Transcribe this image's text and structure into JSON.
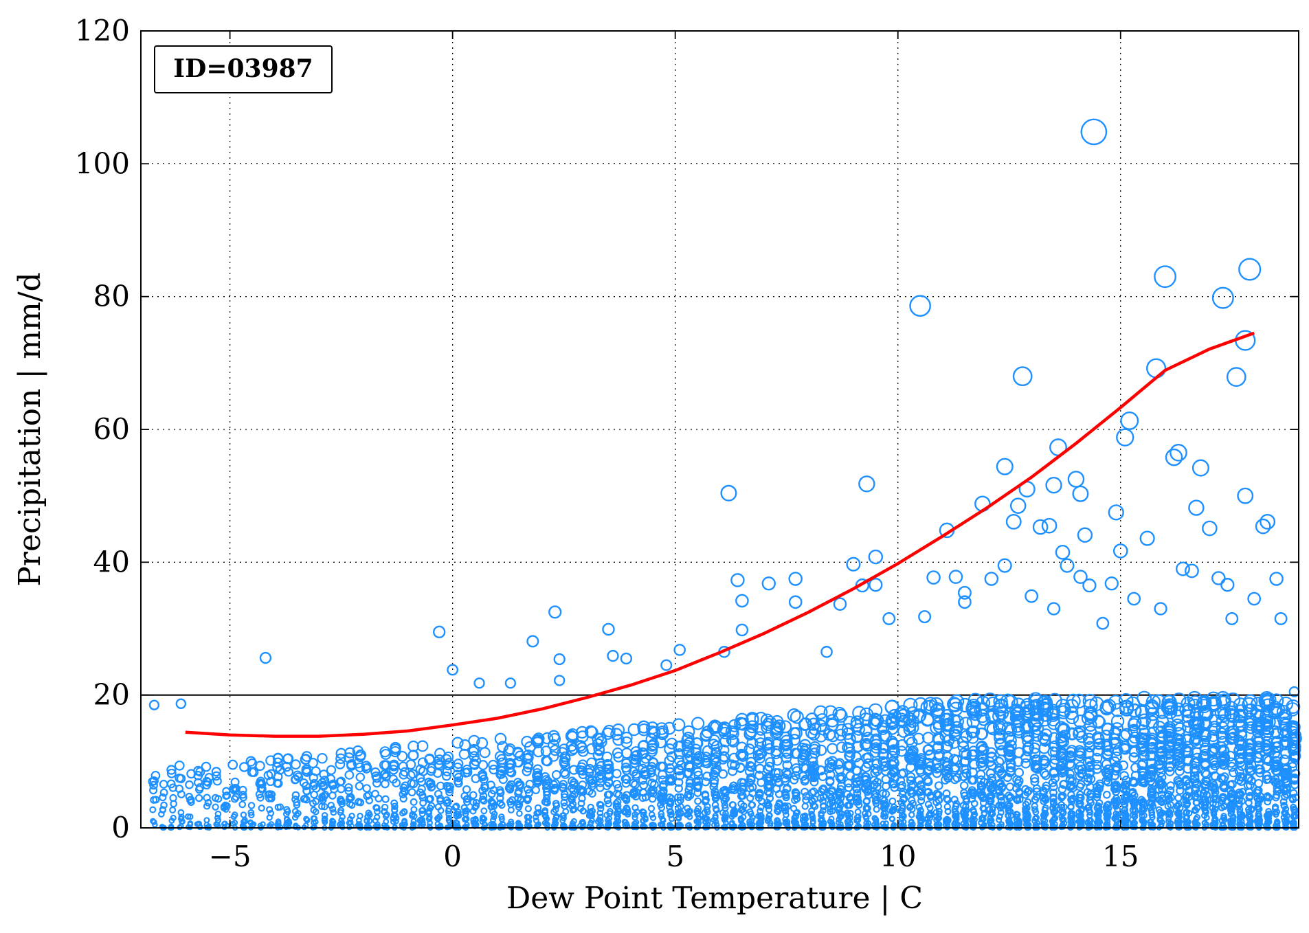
{
  "chart_data": {
    "type": "scatter",
    "title": "",
    "annotation": "ID=03987",
    "xlabel": "Dew Point Temperature | C",
    "ylabel": "Precipitation | mm/d",
    "xlim": [
      -7,
      19
    ],
    "ylim": [
      0,
      120
    ],
    "xticks": [
      -5,
      0,
      5,
      10,
      15
    ],
    "xtick_labels": [
      "−5",
      "0",
      "5",
      "10",
      "15"
    ],
    "yticks": [
      0,
      20,
      40,
      60,
      80,
      100,
      120
    ],
    "ytick_labels": [
      "0",
      "20",
      "40",
      "60",
      "80",
      "100",
      "120"
    ],
    "grid": true,
    "grid_style": "dotted",
    "threshold_line": {
      "y": 20
    },
    "colors": {
      "points": "#1E90FF",
      "fit": "#FF0000",
      "threshold": "#000000"
    },
    "fit_curve": {
      "x": [
        -6,
        -5,
        -4,
        -3,
        -2,
        -1,
        0,
        1,
        2,
        3,
        4,
        5,
        6,
        7,
        8,
        9,
        10,
        11,
        12,
        13,
        14,
        15,
        16,
        17,
        18
      ],
      "y": [
        14.4,
        14.0,
        13.8,
        13.8,
        14.1,
        14.6,
        15.5,
        16.5,
        17.9,
        19.6,
        21.5,
        23.7,
        26.4,
        29.3,
        32.5,
        36.0,
        39.8,
        43.9,
        48.2,
        52.8,
        57.9,
        63.3,
        68.9,
        72.1,
        74.5
      ]
    },
    "series": [
      {
        "x": [
          -6.7,
          -6.1,
          -4.2,
          -0.3,
          0,
          0.6,
          1.3,
          1.8,
          2.3,
          2.4,
          2.4,
          3.5,
          3.6,
          3.9,
          4.8,
          5.1,
          6.1,
          6.2,
          6.4,
          6.5,
          6.5,
          7.1,
          7.7,
          7.7,
          8.4,
          8.7,
          9.0,
          9.2,
          9.3,
          9.5,
          9.5,
          9.8,
          10.5,
          10.6,
          10.8,
          11.1,
          11.3,
          11.5,
          11.5,
          11.9,
          12.1,
          12.4,
          12.4,
          12.6,
          12.7,
          12.8,
          12.9,
          13.0,
          13.2,
          13.4,
          13.5,
          13.5,
          13.6,
          13.7,
          13.8,
          14.0,
          14.1,
          14.1,
          14.2,
          14.3,
          14.4,
          14.6,
          14.8,
          14.9,
          15.0,
          15.1,
          15.2,
          15.3,
          15.6,
          15.8,
          15.9,
          16.0,
          16.2,
          16.3,
          16.4,
          16.6,
          16.7,
          16.8,
          17.0,
          17.2,
          17.3,
          17.4,
          17.5,
          17.6,
          17.8,
          17.8,
          17.9,
          18.0,
          18.2,
          18.3,
          18.5,
          18.6,
          18.9
        ],
        "y": [
          18.5,
          18.7,
          25.6,
          29.5,
          23.8,
          21.8,
          21.8,
          28.1,
          32.5,
          25.4,
          22.2,
          29.9,
          25.9,
          25.5,
          24.5,
          26.8,
          26.5,
          50.4,
          37.3,
          34.2,
          29.8,
          36.8,
          37.5,
          34.0,
          26.5,
          33.7,
          39.7,
          36.5,
          51.8,
          40.8,
          36.6,
          31.5,
          78.6,
          31.8,
          37.7,
          44.8,
          37.8,
          35.4,
          34.0,
          48.8,
          37.5,
          54.4,
          39.5,
          46.1,
          48.5,
          68.0,
          51.0,
          34.9,
          45.3,
          45.5,
          51.6,
          33.0,
          57.3,
          41.5,
          39.5,
          52.5,
          50.3,
          37.8,
          44.1,
          36.5,
          104.8,
          30.8,
          36.8,
          47.5,
          41.7,
          58.8,
          61.3,
          34.5,
          43.6,
          69.2,
          33.0,
          83.0,
          55.8,
          56.5,
          39.0,
          38.7,
          48.2,
          54.2,
          45.1,
          37.6,
          79.8,
          36.6,
          31.5,
          67.9,
          73.4,
          50.0,
          84.1,
          34.5,
          45.4,
          46.1,
          37.5,
          31.5,
          20.5
        ]
      }
    ]
  }
}
